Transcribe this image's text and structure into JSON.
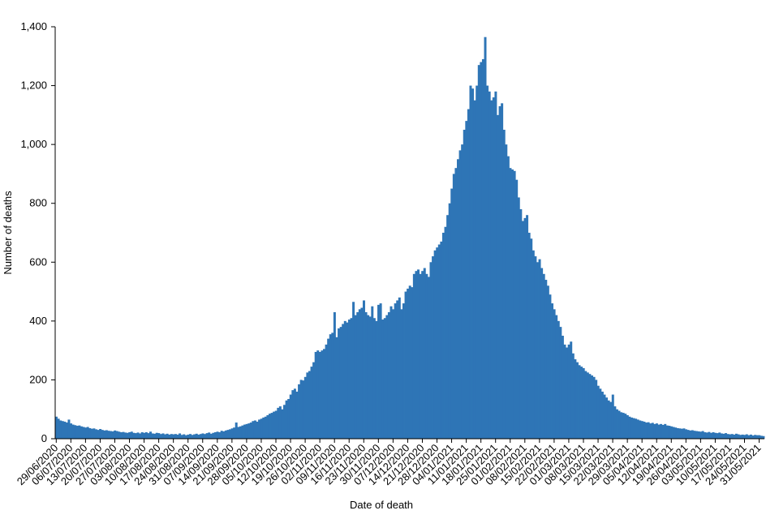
{
  "chart_data": {
    "type": "bar",
    "x_label": "Date of death",
    "y_label": "Number of deaths",
    "color": "#2e75b6",
    "ylim": [
      0,
      1400
    ],
    "yticks": [
      0,
      200,
      400,
      600,
      800,
      {
        "value": 1000,
        "label": "1,000"
      },
      {
        "value": 1200,
        "label": "1,200"
      },
      {
        "value": 1400,
        "label": "1,400"
      }
    ],
    "categories": [
      "29/06/2020",
      null,
      null,
      null,
      null,
      null,
      null,
      "06/07/2020",
      null,
      null,
      null,
      null,
      null,
      null,
      "13/07/2020",
      null,
      null,
      null,
      null,
      null,
      null,
      "20/07/2020",
      null,
      null,
      null,
      null,
      null,
      null,
      "27/07/2020",
      null,
      null,
      null,
      null,
      null,
      null,
      "03/08/2020",
      null,
      null,
      null,
      null,
      null,
      null,
      "10/08/2020",
      null,
      null,
      null,
      null,
      null,
      null,
      "17/08/2020",
      null,
      null,
      null,
      null,
      null,
      null,
      "24/08/2020",
      null,
      null,
      null,
      null,
      null,
      null,
      "31/08/2020",
      null,
      null,
      null,
      null,
      null,
      null,
      "07/09/2020",
      null,
      null,
      null,
      null,
      null,
      null,
      "14/09/2020",
      null,
      null,
      null,
      null,
      null,
      null,
      "21/09/2020",
      null,
      null,
      null,
      null,
      null,
      null,
      "28/09/2020",
      null,
      null,
      null,
      null,
      null,
      null,
      "05/10/2020",
      null,
      null,
      null,
      null,
      null,
      null,
      "12/10/2020",
      null,
      null,
      null,
      null,
      null,
      null,
      "19/10/2020",
      null,
      null,
      null,
      null,
      null,
      null,
      "26/10/2020",
      null,
      null,
      null,
      null,
      null,
      null,
      "02/11/2020",
      null,
      null,
      null,
      null,
      null,
      null,
      "09/11/2020",
      null,
      null,
      null,
      null,
      null,
      null,
      "16/11/2020",
      null,
      null,
      null,
      null,
      null,
      null,
      "23/11/2020",
      null,
      null,
      null,
      null,
      null,
      null,
      "30/11/2020",
      null,
      null,
      null,
      null,
      null,
      null,
      "07/12/2020",
      null,
      null,
      null,
      null,
      null,
      null,
      "14/12/2020",
      null,
      null,
      null,
      null,
      null,
      null,
      "21/12/2020",
      null,
      null,
      null,
      null,
      null,
      null,
      "28/12/2020",
      null,
      null,
      null,
      null,
      null,
      null,
      "04/01/2021",
      null,
      null,
      null,
      null,
      null,
      null,
      "11/01/2021",
      null,
      null,
      null,
      null,
      null,
      null,
      "18/01/2021",
      null,
      null,
      null,
      null,
      null,
      null,
      "25/01/2021",
      null,
      null,
      null,
      null,
      null,
      null,
      "01/02/2021",
      null,
      null,
      null,
      null,
      null,
      null,
      "08/02/2021",
      null,
      null,
      null,
      null,
      null,
      null,
      "15/02/2021",
      null,
      null,
      null,
      null,
      null,
      null,
      "22/02/2021",
      null,
      null,
      null,
      null,
      null,
      null,
      "01/03/2021",
      null,
      null,
      null,
      null,
      null,
      null,
      "08/03/2021",
      null,
      null,
      null,
      null,
      null,
      null,
      "15/03/2021",
      null,
      null,
      null,
      null,
      null,
      null,
      "22/03/2021",
      null,
      null,
      null,
      null,
      null,
      null,
      "29/03/2021",
      null,
      null,
      null,
      null,
      null,
      null,
      "05/04/2021",
      null,
      null,
      null,
      null,
      null,
      null,
      "12/04/2021",
      null,
      null,
      null,
      null,
      null,
      null,
      "19/04/2021",
      null,
      null,
      null,
      null,
      null,
      null,
      "26/04/2021",
      null,
      null,
      null,
      null,
      null,
      null,
      "03/05/2021",
      null,
      null,
      null,
      null,
      null,
      null,
      "10/05/2021",
      null,
      null,
      null,
      null,
      null,
      null,
      "17/05/2021",
      null,
      null,
      null,
      null,
      null,
      null,
      "24/05/2021",
      null,
      null,
      null,
      null,
      null,
      null,
      "31/05/2021",
      null,
      null
    ],
    "values": [
      75,
      68,
      62,
      60,
      58,
      55,
      65,
      52,
      48,
      46,
      44,
      45,
      42,
      40,
      38,
      40,
      36,
      34,
      35,
      32,
      30,
      33,
      30,
      28,
      29,
      27,
      26,
      25,
      28,
      26,
      24,
      22,
      23,
      21,
      20,
      22,
      24,
      20,
      19,
      21,
      18,
      22,
      20,
      22,
      19,
      24,
      18,
      17,
      20,
      19,
      16,
      18,
      15,
      17,
      14,
      16,
      15,
      16,
      14,
      18,
      13,
      15,
      12,
      14,
      16,
      13,
      15,
      17,
      14,
      16,
      18,
      16,
      19,
      21,
      17,
      20,
      22,
      24,
      22,
      27,
      25,
      28,
      30,
      32,
      35,
      38,
      55,
      40,
      42,
      45,
      48,
      50,
      52,
      55,
      60,
      62,
      58,
      65,
      68,
      72,
      75,
      80,
      85,
      88,
      92,
      95,
      105,
      110,
      100,
      115,
      130,
      135,
      150,
      165,
      170,
      160,
      185,
      200,
      198,
      210,
      225,
      230,
      245,
      260,
      295,
      300,
      295,
      300,
      305,
      320,
      340,
      355,
      360,
      430,
      345,
      375,
      380,
      390,
      400,
      395,
      405,
      410,
      465,
      420,
      430,
      440,
      445,
      470,
      430,
      420,
      415,
      450,
      410,
      400,
      455,
      460,
      405,
      410,
      420,
      430,
      450,
      440,
      460,
      470,
      480,
      440,
      460,
      500,
      510,
      520,
      515,
      560,
      570,
      575,
      560,
      570,
      580,
      560,
      550,
      600,
      620,
      640,
      650,
      660,
      670,
      700,
      720,
      760,
      800,
      850,
      900,
      920,
      950,
      980,
      1000,
      1050,
      1080,
      1120,
      1200,
      1190,
      1150,
      1200,
      1270,
      1280,
      1290,
      1365,
      1200,
      1180,
      1150,
      1160,
      1180,
      1100,
      1130,
      1140,
      1050,
      1000,
      960,
      920,
      915,
      910,
      880,
      820,
      780,
      740,
      750,
      760,
      700,
      680,
      640,
      620,
      600,
      610,
      580,
      560,
      540,
      520,
      490,
      460,
      440,
      420,
      400,
      380,
      350,
      320,
      310,
      320,
      330,
      290,
      270,
      260,
      250,
      245,
      240,
      230,
      225,
      220,
      215,
      210,
      200,
      180,
      170,
      160,
      150,
      140,
      130,
      125,
      150,
      110,
      100,
      95,
      90,
      88,
      85,
      80,
      75,
      72,
      70,
      68,
      65,
      62,
      60,
      58,
      55,
      56,
      52,
      54,
      50,
      52,
      48,
      50,
      47,
      50,
      45,
      44,
      42,
      40,
      38,
      36,
      35,
      34,
      35,
      32,
      30,
      28,
      29,
      27,
      26,
      25,
      24,
      26,
      22,
      21,
      23,
      20,
      22,
      20,
      19,
      21,
      18,
      17,
      19,
      16,
      15,
      16,
      14,
      17,
      15,
      13,
      14,
      13,
      15,
      12,
      14,
      11,
      13,
      12,
      12,
      10,
      9
    ]
  }
}
